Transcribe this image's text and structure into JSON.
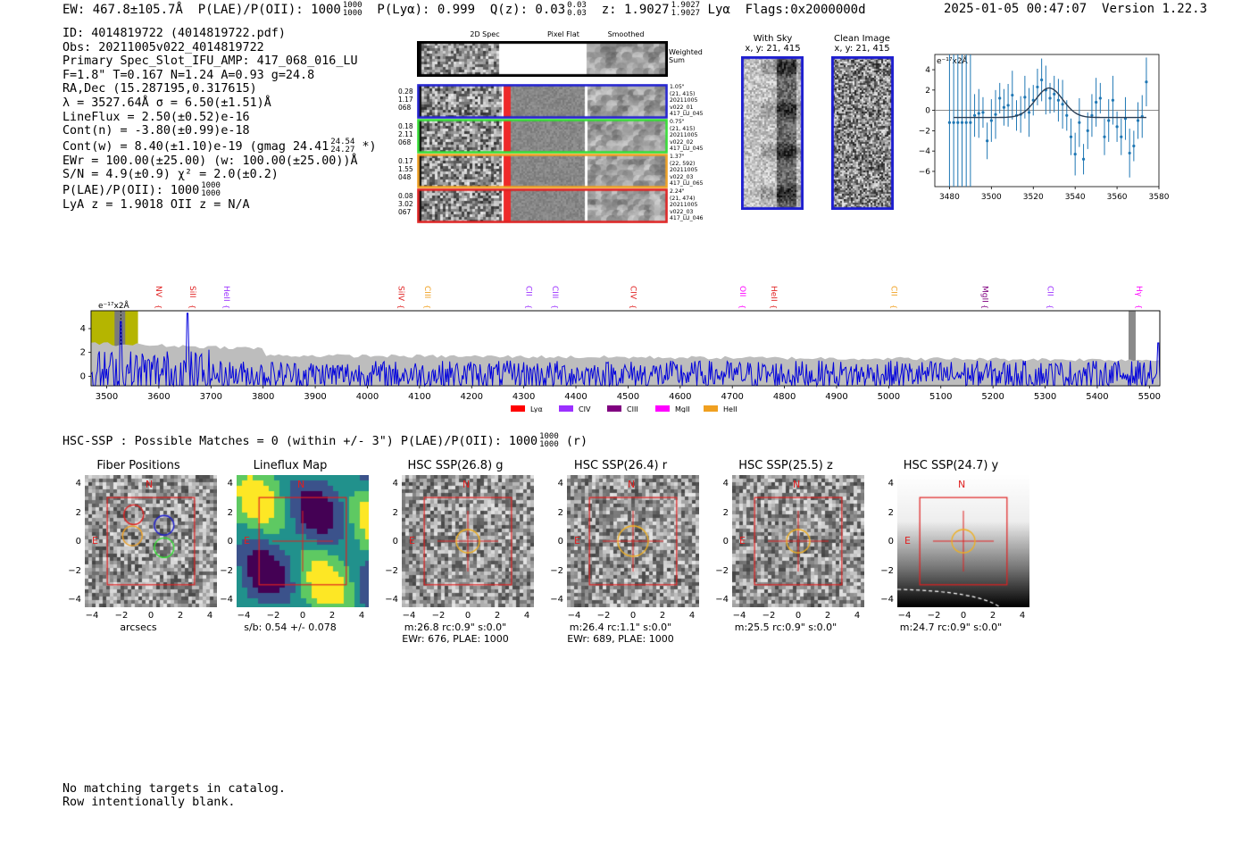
{
  "header": {
    "ew": "EW: 467.8±105.7Å",
    "plae_label": "P(LAE)/P(OII): 1000",
    "plae_hi": "1000",
    "plae_lo": "1000",
    "plya": "P(Lyα): 0.999",
    "qz": "Q(z): 0.03",
    "qz_hi": "0.03",
    "qz_lo": "0.03",
    "z": "z: 1.9027",
    "z_hi": "1.9027",
    "z_lo": "1.9027",
    "z_line": "Lyα",
    "flags": "Flags:0x2000000d",
    "datetime": "2025-01-05 00:47:07",
    "version": "Version 1.22.3"
  },
  "info": {
    "id": "ID: 4014819722 (4014819722.pdf)",
    "obs": "Obs: 20211005v022_4014819722",
    "slot": "Primary Spec_Slot_IFU_AMP: 417_068_016_LU",
    "fiber": "F=1.8\"  T=0.167  N=1.24  A=0.93  g=24.8",
    "radec": "RA,Dec (15.287195,0.317615)",
    "lambda": "λ = 3527.64Å   σ = 6.50(±1.51)Å",
    "lineflux": "LineFlux = 2.50(±0.52)e-16",
    "contn": "Cont(n) = -3.80(±0.99)e-18",
    "contw": "Cont(w) = 8.40(±1.10)e-19 (gmag 24.41",
    "contw_hi": "24.54",
    "contw_lo": "24.27",
    "contw_end": "*)",
    "ewr": "EWr = 100.00(±25.00) (w: 100.00(±25.00))Å",
    "sn": "S/N = 4.9(±0.9)  χ² = 2.0(±0.2)",
    "plae": "P(LAE)/P(OII): 1000",
    "plae_hi": "1000",
    "plae_lo": "1000",
    "lya": "LyA z = 1.9018  OII z = N/A"
  },
  "cutouts": {
    "col_2d": "2D Spec",
    "col_flat": "Pixel Flat",
    "col_smooth": "Smoothed",
    "weighted": "Weighted",
    "sum": "Sum",
    "rows": [
      {
        "v1": "0.28",
        "v2": "1.17",
        "v3": "068",
        "d1": "1.05\"",
        "d2": "(21, 415)",
        "d3": "20211005",
        "d4": "v022_01",
        "d5": "417_LU_045",
        "color": "#1f1fd0"
      },
      {
        "v1": "0.18",
        "v2": "2.11",
        "v3": "068",
        "d1": "0.75\"",
        "d2": "(21, 415)",
        "d3": "20211005",
        "d4": "v022_02",
        "d5": "417_LU_045",
        "color": "#33dd33"
      },
      {
        "v1": "0.17",
        "v2": "1.55",
        "v3": "048",
        "d1": "1.37\"",
        "d2": "(22, 592)",
        "d3": "20211005",
        "d4": "v022_03",
        "d5": "417_LU_065",
        "color": "#f0a020"
      },
      {
        "v1": "0.08",
        "v2": "3.02",
        "v3": "067",
        "d1": "2.24\"",
        "d2": "(21, 474)",
        "d3": "20211005",
        "d4": "v022_03",
        "d5": "417_LU_046",
        "color": "#e02020"
      }
    ]
  },
  "sky": {
    "with_sky": "With Sky",
    "with_sky_xy": "x, y: 21, 415",
    "clean": "Clean Image",
    "clean_xy": "x, y: 21, 415"
  },
  "zoom_plot": {
    "label": "e⁻¹⁷x2Å",
    "xticks": [
      "3480",
      "3500",
      "3520",
      "3540",
      "3560",
      "3580"
    ],
    "yticks": [
      "4",
      "2",
      "0",
      "−2",
      "−4",
      "−6"
    ]
  },
  "chart_data": [
    {
      "type": "scatter",
      "title": "",
      "ylabel": "e-17 x2Å",
      "xlim": [
        3473,
        3580
      ],
      "ylim": [
        -7.5,
        5.5
      ],
      "x": [
        3480,
        3482,
        3484,
        3486,
        3488,
        3490,
        3492,
        3494,
        3496,
        3498,
        3500,
        3502,
        3504,
        3506,
        3508,
        3510,
        3512,
        3514,
        3516,
        3518,
        3520,
        3522,
        3524,
        3526,
        3528,
        3530,
        3532,
        3534,
        3536,
        3538,
        3540,
        3542,
        3544,
        3546,
        3548,
        3550,
        3552,
        3554,
        3556,
        3558,
        3560,
        3562,
        3564,
        3566,
        3568,
        3570,
        3572,
        3574
      ],
      "y": [
        -1.2,
        -1.2,
        -1.2,
        -1.2,
        -1.2,
        -1.2,
        -0.5,
        -0.3,
        -0.2,
        -3.0,
        -1.0,
        -0.4,
        1.2,
        0.3,
        0.5,
        1.5,
        -0.5,
        -0.4,
        1.3,
        -0.2,
        1.0,
        2.3,
        3.0,
        2.0,
        1.2,
        1.6,
        1.0,
        0.6,
        -0.5,
        -2.6,
        -4.3,
        -1.2,
        -4.8,
        -2.0,
        -0.5,
        0.8,
        1.2,
        -2.6,
        -1.0,
        1.0,
        -1.6,
        -2.6,
        -0.8,
        -4.2,
        -3.5,
        -1.0,
        -0.6,
        2.8
      ],
      "fit": "gaussian center 3527.6, amplitude ~2.8 above baseline -0.7"
    },
    {
      "type": "line",
      "title": "",
      "xlabel": "",
      "ylabel": "",
      "xlim": [
        3470,
        5520
      ],
      "ylim": [
        -0.8,
        5.5
      ],
      "xticks": [
        "3500",
        "3600",
        "3700",
        "3800",
        "3900",
        "4000",
        "4100",
        "4200",
        "4300",
        "4400",
        "4500",
        "4600",
        "4700",
        "4800",
        "4900",
        "5000",
        "5100",
        "5200",
        "5300",
        "5400",
        "5500"
      ],
      "yticks": [
        "4",
        "2",
        "0"
      ],
      "highlight_region": [
        3470,
        3560
      ],
      "line_markers": [
        {
          "name": "NV",
          "wave": 3590,
          "color": "#e02020"
        },
        {
          "name": "SiII",
          "wave": 3655,
          "color": "#e02020"
        },
        {
          "name": "HeII",
          "wave": 3720,
          "color": "#9b30ff"
        },
        {
          "name": "SiIV",
          "wave": 4055,
          "color": "#e02020"
        },
        {
          "name": "CIII",
          "wave": 4105,
          "color": "#f0a020"
        },
        {
          "name": "CII",
          "wave": 4300,
          "color": "#9b30ff"
        },
        {
          "name": "CIII",
          "wave": 4350,
          "color": "#9b30ff"
        },
        {
          "name": "CIV",
          "wave": 4500,
          "color": "#e02020"
        },
        {
          "name": "OII",
          "wave": 4710,
          "color": "#ff00ff"
        },
        {
          "name": "HeII",
          "wave": 4770,
          "color": "#e02020"
        },
        {
          "name": "CII",
          "wave": 5000,
          "color": "#f0a020"
        },
        {
          "name": "MgII",
          "wave": 5175,
          "color": "#800080"
        },
        {
          "name": "CII",
          "wave": 5300,
          "color": "#9b30ff"
        },
        {
          "name": "Hγ",
          "wave": 5470,
          "color": "#ff00ff"
        }
      ],
      "legend": [
        {
          "name": "Lyα",
          "color": "#ff0000"
        },
        {
          "name": "CIV",
          "color": "#9b30ff"
        },
        {
          "name": "CIII",
          "color": "#800080"
        },
        {
          "name": "MgII",
          "color": "#ff00ff"
        },
        {
          "name": "HeII",
          "color": "#f0a020"
        }
      ]
    }
  ],
  "spectrum_label": "e⁻¹⁷x2Å",
  "hsc": {
    "summary": "HSC-SSP : Possible Matches = 0 (within +/- 3\")  P(LAE)/P(OII): 1000",
    "summary_hi": "1000",
    "summary_lo": "1000",
    "summary_end": "(r)"
  },
  "panels": [
    {
      "title": "Fiber Positions",
      "cap1": "arcsecs",
      "cap2": ""
    },
    {
      "title": "Lineflux Map",
      "cap1": "s/b: 0.54 +/- 0.078",
      "cap2": ""
    },
    {
      "title": "HSC SSP(26.8) g",
      "cap1": "m:26.8 rc:0.9\"  s:0.0\"",
      "cap2": "EWr: 676, PLAE: 1000"
    },
    {
      "title": "HSC SSP(26.4) r",
      "cap1": "m:26.4 rc:1.1\"  s:0.0\"",
      "cap2": "EWr: 689, PLAE: 1000"
    },
    {
      "title": "HSC SSP(25.5) z",
      "cap1": "m:25.5 rc:0.9\"  s:0.0\"",
      "cap2": ""
    },
    {
      "title": "HSC SSP(24.7) y",
      "cap1": "m:24.7 rc:0.9\"  s:0.0\"",
      "cap2": ""
    }
  ],
  "panel_axes": {
    "ticks": [
      "4",
      "2",
      "0",
      "−2",
      "−4"
    ],
    "xticks": [
      "−4",
      "−2",
      "0",
      "2",
      "4"
    ],
    "north": "N",
    "east": "E"
  },
  "footer": {
    "line1": "No matching targets in catalog.",
    "line2": "Row intentionally blank."
  }
}
